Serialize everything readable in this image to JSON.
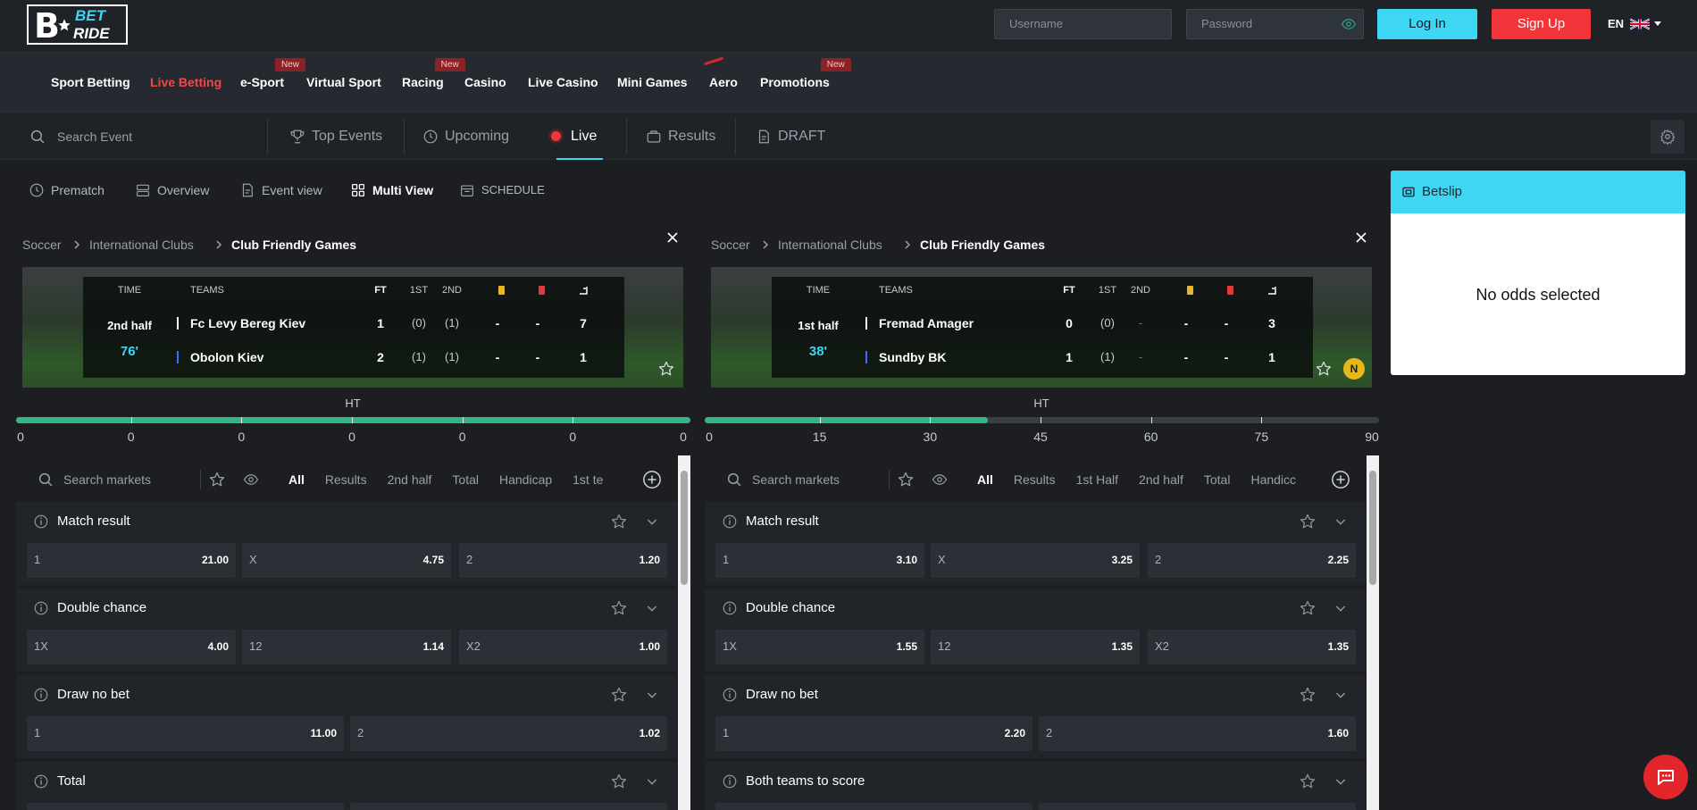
{
  "header": {
    "logo": {
      "mark": "B",
      "top": "BET",
      "bottom": "RIDE"
    },
    "username": "Username",
    "password": "Password",
    "login": "Log In",
    "signup": "Sign Up",
    "language": "EN"
  },
  "nav": {
    "items": [
      {
        "label": "Sport Betting"
      },
      {
        "label": "Live Betting"
      },
      {
        "label": "e-Sport",
        "badge": "New"
      },
      {
        "label": "Virtual Sport"
      },
      {
        "label": "Racing",
        "badge": "New"
      },
      {
        "label": "Casino"
      },
      {
        "label": "Live Casino"
      },
      {
        "label": "Mini Games"
      },
      {
        "label": "Aero"
      },
      {
        "label": "Promotions",
        "badge": "New"
      }
    ]
  },
  "subnav": {
    "search": "Search Event",
    "tabs": [
      "Top Events",
      "Upcoming",
      "Live",
      "Results",
      "DRAFT"
    ]
  },
  "view_tabs": [
    "Prematch",
    "Overview",
    "Event view",
    "Multi View",
    "SCHEDULE"
  ],
  "events": [
    {
      "breadcrumb": [
        "Soccer",
        "International Clubs",
        "Club Friendly Games"
      ],
      "scoreboard": {
        "headers": [
          "TIME",
          "TEAMS",
          "FT",
          "1ST",
          "2ND"
        ],
        "period": "2nd half",
        "minute": "76'",
        "teams": [
          {
            "name": "Fc Levy Bereg Kiev",
            "cells": [
              "1",
              "(0)",
              "(1)",
              "-",
              "-",
              "7"
            ]
          },
          {
            "name": "Obolon Kiev",
            "cells": [
              "2",
              "(1)",
              "(1)",
              "-",
              "-",
              "1"
            ]
          }
        ]
      },
      "timeline": {
        "label": "HT",
        "ticks": [
          "0",
          "0",
          "0",
          "0",
          "0",
          "0",
          "0"
        ],
        "progress": 100
      },
      "market_search": "Search markets",
      "filters": [
        "All",
        "Results",
        "2nd half",
        "Total",
        "Handicap",
        "1st te"
      ],
      "markets": [
        {
          "name": "Match result",
          "odds": [
            {
              "label": "1",
              "price": "21.00"
            },
            {
              "label": "X",
              "price": "4.75"
            },
            {
              "label": "2",
              "price": "1.20"
            }
          ]
        },
        {
          "name": "Double chance",
          "odds": [
            {
              "label": "1X",
              "price": "4.00"
            },
            {
              "label": "12",
              "price": "1.14"
            },
            {
              "label": "X2",
              "price": "1.00"
            }
          ]
        },
        {
          "name": "Draw no bet",
          "odds": [
            {
              "label": "1",
              "price": "11.00"
            },
            {
              "label": "2",
              "price": "1.02"
            }
          ]
        },
        {
          "name": "Total",
          "odds": []
        }
      ]
    },
    {
      "breadcrumb": [
        "Soccer",
        "International Clubs",
        "Club Friendly Games"
      ],
      "scoreboard": {
        "headers": [
          "TIME",
          "TEAMS",
          "FT",
          "1ST",
          "2ND"
        ],
        "period": "1st half",
        "minute": "38'",
        "badge": "N",
        "teams": [
          {
            "name": "Fremad Amager",
            "cells": [
              "0",
              "(0)",
              "-",
              "-",
              "-",
              "3"
            ]
          },
          {
            "name": "Sundby BK",
            "cells": [
              "1",
              "(1)",
              "-",
              "-",
              "-",
              "1"
            ]
          }
        ]
      },
      "timeline": {
        "label": "HT",
        "ticks": [
          "0",
          "15",
          "30",
          "45",
          "60",
          "75",
          "90"
        ],
        "progress": 42
      },
      "market_search": "Search markets",
      "filters": [
        "All",
        "Results",
        "1st Half",
        "2nd half",
        "Total",
        "Handicc"
      ],
      "markets": [
        {
          "name": "Match result",
          "odds": [
            {
              "label": "1",
              "price": "3.10"
            },
            {
              "label": "X",
              "price": "3.25"
            },
            {
              "label": "2",
              "price": "2.25"
            }
          ]
        },
        {
          "name": "Double chance",
          "odds": [
            {
              "label": "1X",
              "price": "1.55"
            },
            {
              "label": "12",
              "price": "1.35"
            },
            {
              "label": "X2",
              "price": "1.35"
            }
          ]
        },
        {
          "name": "Draw no bet",
          "odds": [
            {
              "label": "1",
              "price": "2.20"
            },
            {
              "label": "2",
              "price": "1.60"
            }
          ]
        },
        {
          "name": "Both teams to score",
          "odds": []
        }
      ]
    }
  ],
  "betslip": {
    "title": "Betslip",
    "empty": "No odds selected"
  }
}
